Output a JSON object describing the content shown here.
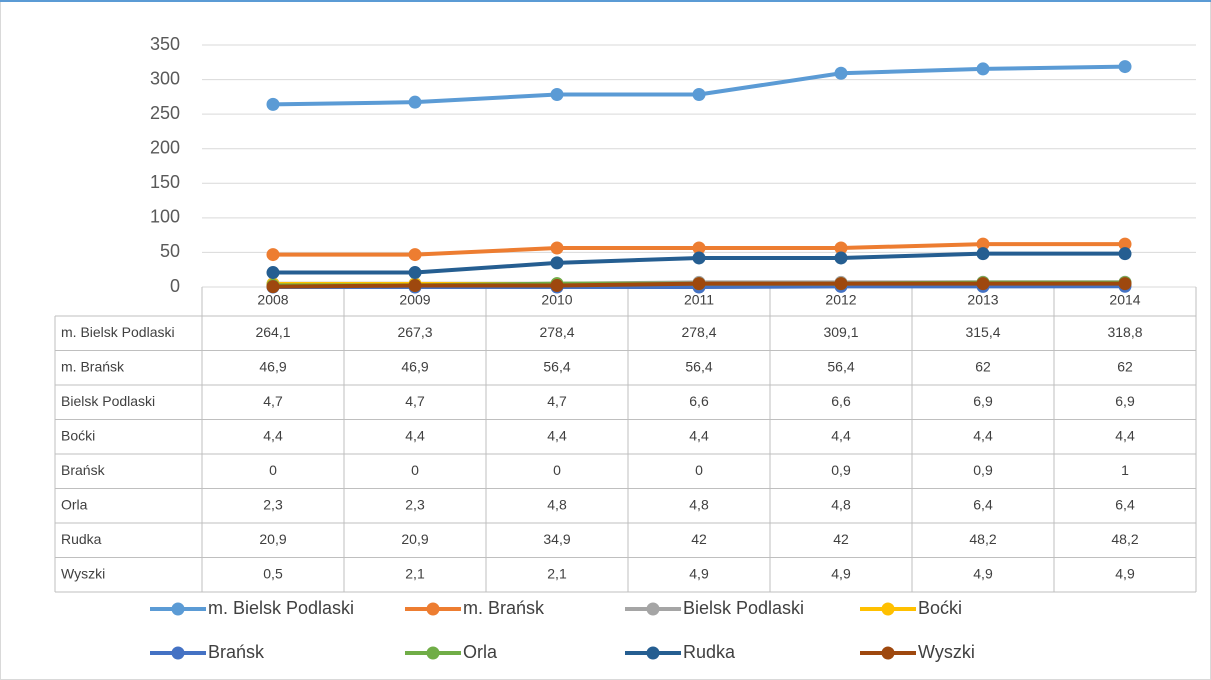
{
  "chart_data": {
    "type": "line",
    "categories": [
      "2008",
      "2009",
      "2010",
      "2011",
      "2012",
      "2013",
      "2014"
    ],
    "ylim": [
      0,
      350
    ],
    "yticks": [
      0,
      50,
      100,
      150,
      200,
      250,
      300,
      350
    ],
    "grid": true,
    "legend": "bottom",
    "series": [
      {
        "name": "m. Bielsk Podlaski",
        "color": "#5b9bd5",
        "values": [
          264.1,
          267.3,
          278.4,
          278.4,
          309.1,
          315.4,
          318.8
        ],
        "value_labels": [
          "264,1",
          "267,3",
          "278,4",
          "278,4",
          "309,1",
          "315,4",
          "318,8"
        ]
      },
      {
        "name": "m. Brańsk",
        "color": "#ed7d31",
        "values": [
          46.9,
          46.9,
          56.4,
          56.4,
          56.4,
          62,
          62
        ],
        "value_labels": [
          "46,9",
          "46,9",
          "56,4",
          "56,4",
          "56,4",
          "62",
          "62"
        ]
      },
      {
        "name": "Bielsk Podlaski",
        "color": "#a5a5a5",
        "values": [
          4.7,
          4.7,
          4.7,
          6.6,
          6.6,
          6.9,
          6.9
        ],
        "value_labels": [
          "4,7",
          "4,7",
          "4,7",
          "6,6",
          "6,6",
          "6,9",
          "6,9"
        ]
      },
      {
        "name": "Boćki",
        "color": "#ffc000",
        "values": [
          4.4,
          4.4,
          4.4,
          4.4,
          4.4,
          4.4,
          4.4
        ],
        "value_labels": [
          "4,4",
          "4,4",
          "4,4",
          "4,4",
          "4,4",
          "4,4",
          "4,4"
        ]
      },
      {
        "name": "Brańsk",
        "color": "#4472c4",
        "values": [
          0,
          0,
          0,
          0,
          0.9,
          0.9,
          1
        ],
        "value_labels": [
          "0",
          "0",
          "0",
          "0",
          "0,9",
          "0,9",
          "1"
        ]
      },
      {
        "name": "Orla",
        "color": "#70ad47",
        "values": [
          2.3,
          2.3,
          4.8,
          4.8,
          4.8,
          6.4,
          6.4
        ],
        "value_labels": [
          "2,3",
          "2,3",
          "4,8",
          "4,8",
          "4,8",
          "6,4",
          "6,4"
        ]
      },
      {
        "name": "Rudka",
        "color": "#255e91",
        "values": [
          20.9,
          20.9,
          34.9,
          42,
          42,
          48.2,
          48.2
        ],
        "value_labels": [
          "20,9",
          "20,9",
          "34,9",
          "42",
          "42",
          "48,2",
          "48,2"
        ]
      },
      {
        "name": "Wyszki",
        "color": "#9e480e",
        "values": [
          0.5,
          2.1,
          2.1,
          4.9,
          4.9,
          4.9,
          4.9
        ],
        "value_labels": [
          "0,5",
          "2,1",
          "2,1",
          "4,9",
          "4,9",
          "4,9",
          "4,9"
        ]
      }
    ]
  }
}
